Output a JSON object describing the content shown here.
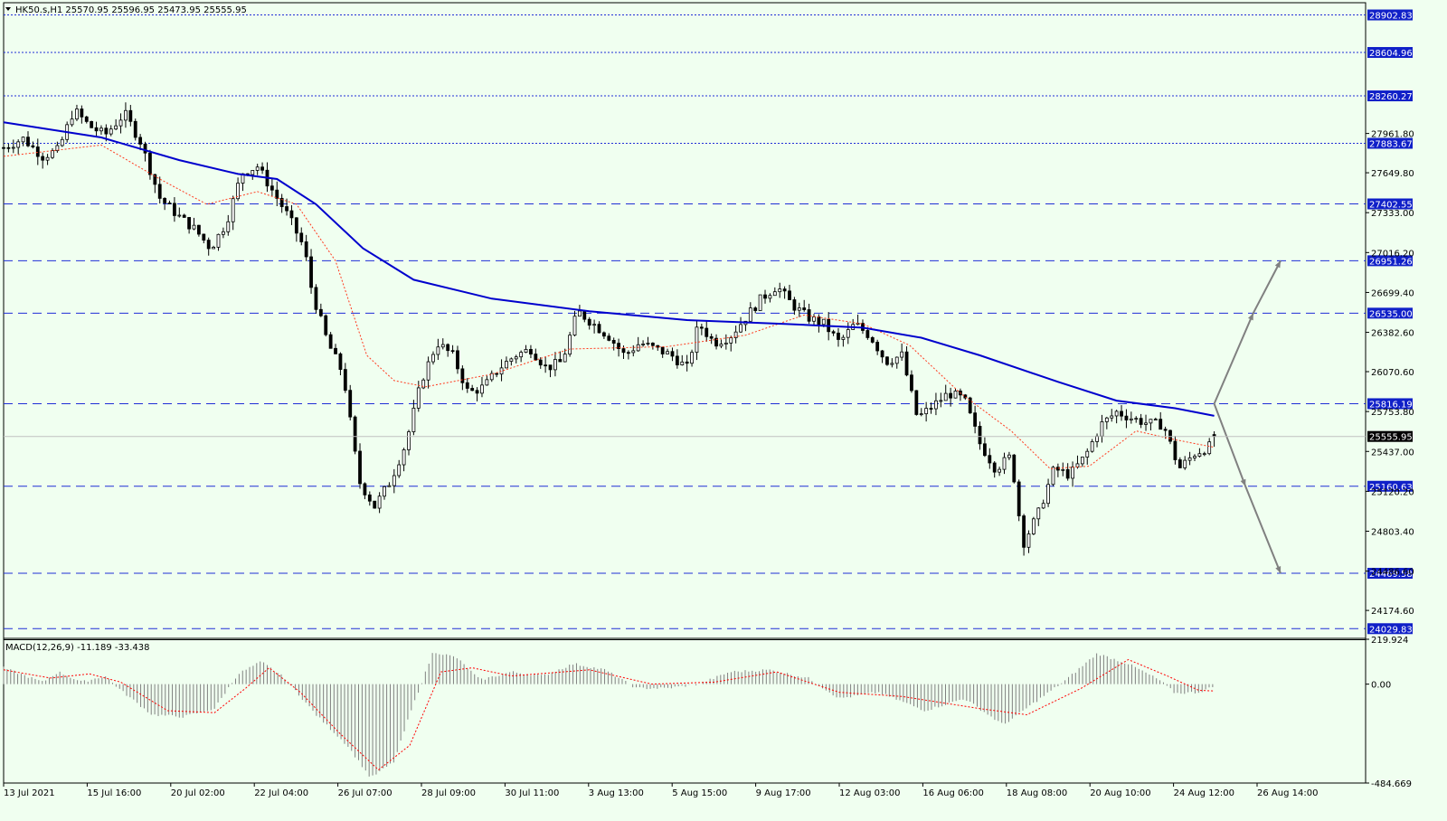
{
  "window": {
    "symbol_info": "HK50.s,H1  25570.95 25596.95 25473.95 25555.95",
    "menu_icon": "triangle-down-icon"
  },
  "colors": {
    "background": "#f0fff0",
    "bull_candle": "#ffffff",
    "bear_candle": "#000000",
    "ma_long": "#0000cd",
    "ma_short": "#ff3b1f",
    "level_line": "#1f2fd6",
    "price_tag_bg": "#1020c8",
    "current_tag_bg": "#000000",
    "macd_hist": "#808080",
    "macd_signal": "#ff0000",
    "arrow": "#808080"
  },
  "chart_data": [
    {
      "type": "candlestick",
      "symbol": "HK50.s",
      "timeframe": "H1",
      "ohlc_last": {
        "open": 25570.95,
        "high": 25596.95,
        "low": 25473.95,
        "close": 25555.95
      },
      "current_price": 25555.95,
      "ylim": [
        23960,
        29000
      ],
      "y_ticks": [
        "27961.80",
        "27649.80",
        "27333.00",
        "27016.20",
        "26699.40",
        "26382.60",
        "26070.60",
        "25753.80",
        "25437.00",
        "25120.20",
        "24803.40",
        "24486.60",
        "24174.60"
      ],
      "x_ticks": [
        "13 Jul 2021",
        "15 Jul 16:00",
        "20 Jul 02:00",
        "22 Jul 04:00",
        "26 Jul 07:00",
        "28 Jul 09:00",
        "30 Jul 11:00",
        "3 Aug 13:00",
        "5 Aug 15:00",
        "9 Aug 17:00",
        "12 Aug 03:00",
        "16 Aug 06:00",
        "18 Aug 08:00",
        "20 Aug 10:00",
        "24 Aug 12:00",
        "26 Aug 14:00"
      ],
      "horizontal_levels": [
        {
          "price": 28902.83,
          "label": "28902.83",
          "style": "dotted"
        },
        {
          "price": 28604.96,
          "label": "28604.96",
          "style": "dotted"
        },
        {
          "price": 28260.27,
          "label": "28260.27",
          "style": "dotted"
        },
        {
          "price": 27883.67,
          "label": "27883.67",
          "style": "dotted"
        },
        {
          "price": 27402.55,
          "label": "27402.55",
          "style": "dashed"
        },
        {
          "price": 26951.26,
          "label": "26951.26",
          "style": "dashed"
        },
        {
          "price": 26535.0,
          "label": "26535.00",
          "style": "dashed"
        },
        {
          "price": 25816.19,
          "label": "25816.19",
          "style": "dashed"
        },
        {
          "price": 25160.63,
          "label": "25160.63",
          "style": "dashed"
        },
        {
          "price": 24469.58,
          "label": "24469.58",
          "style": "dashed"
        },
        {
          "price": 24029.83,
          "label": "24029.83",
          "style": "dashed"
        }
      ],
      "price_path": [
        {
          "x": 0,
          "y": 27850
        },
        {
          "x": 5,
          "y": 27920
        },
        {
          "x": 10,
          "y": 27780
        },
        {
          "x": 14,
          "y": 27830
        },
        {
          "x": 18,
          "y": 28150
        },
        {
          "x": 22,
          "y": 28020
        },
        {
          "x": 26,
          "y": 27950
        },
        {
          "x": 31,
          "y": 28120
        },
        {
          "x": 35,
          "y": 27900
        },
        {
          "x": 40,
          "y": 27450
        },
        {
          "x": 45,
          "y": 27300
        },
        {
          "x": 49,
          "y": 27200
        },
        {
          "x": 53,
          "y": 27050
        },
        {
          "x": 57,
          "y": 27250
        },
        {
          "x": 61,
          "y": 27650
        },
        {
          "x": 65,
          "y": 27700
        },
        {
          "x": 69,
          "y": 27500
        },
        {
          "x": 73,
          "y": 27300
        },
        {
          "x": 77,
          "y": 27050
        },
        {
          "x": 79,
          "y": 26700
        },
        {
          "x": 83,
          "y": 26300
        },
        {
          "x": 87,
          "y": 26050
        },
        {
          "x": 91,
          "y": 25200
        },
        {
          "x": 95,
          "y": 25000
        },
        {
          "x": 99,
          "y": 25200
        },
        {
          "x": 103,
          "y": 25500
        },
        {
          "x": 107,
          "y": 26000
        },
        {
          "x": 111,
          "y": 26300
        },
        {
          "x": 115,
          "y": 26200
        },
        {
          "x": 119,
          "y": 25900
        },
        {
          "x": 123,
          "y": 25950
        },
        {
          "x": 127,
          "y": 26100
        },
        {
          "x": 131,
          "y": 26200
        },
        {
          "x": 135,
          "y": 26250
        },
        {
          "x": 139,
          "y": 26100
        },
        {
          "x": 143,
          "y": 26150
        },
        {
          "x": 147,
          "y": 26550
        },
        {
          "x": 151,
          "y": 26450
        },
        {
          "x": 155,
          "y": 26350
        },
        {
          "x": 159,
          "y": 26200
        },
        {
          "x": 163,
          "y": 26300
        },
        {
          "x": 167,
          "y": 26250
        },
        {
          "x": 171,
          "y": 26200
        },
        {
          "x": 175,
          "y": 26100
        },
        {
          "x": 178,
          "y": 26450
        },
        {
          "x": 182,
          "y": 26300
        },
        {
          "x": 186,
          "y": 26350
        },
        {
          "x": 190,
          "y": 26500
        },
        {
          "x": 194,
          "y": 26650
        },
        {
          "x": 198,
          "y": 26750
        },
        {
          "x": 202,
          "y": 26600
        },
        {
          "x": 206,
          "y": 26500
        },
        {
          "x": 210,
          "y": 26450
        },
        {
          "x": 214,
          "y": 26300
        },
        {
          "x": 218,
          "y": 26450
        },
        {
          "x": 222,
          "y": 26350
        },
        {
          "x": 226,
          "y": 26150
        },
        {
          "x": 230,
          "y": 26200
        },
        {
          "x": 234,
          "y": 25700
        },
        {
          "x": 238,
          "y": 25800
        },
        {
          "x": 242,
          "y": 25900
        },
        {
          "x": 246,
          "y": 25850
        },
        {
          "x": 250,
          "y": 25500
        },
        {
          "x": 254,
          "y": 25300
        },
        {
          "x": 258,
          "y": 25400
        },
        {
          "x": 261,
          "y": 24700
        },
        {
          "x": 265,
          "y": 24950
        },
        {
          "x": 269,
          "y": 25300
        },
        {
          "x": 273,
          "y": 25250
        },
        {
          "x": 277,
          "y": 25400
        },
        {
          "x": 281,
          "y": 25650
        },
        {
          "x": 285,
          "y": 25750
        },
        {
          "x": 289,
          "y": 25700
        },
        {
          "x": 293,
          "y": 25660
        },
        {
          "x": 297,
          "y": 25650
        },
        {
          "x": 301,
          "y": 25300
        },
        {
          "x": 305,
          "y": 25420
        },
        {
          "x": 309,
          "y": 25480
        },
        {
          "x": 310,
          "y": 25555.95
        }
      ],
      "ma_long": [
        {
          "x": 0,
          "y": 28050
        },
        {
          "x": 25,
          "y": 27930
        },
        {
          "x": 45,
          "y": 27750
        },
        {
          "x": 60,
          "y": 27640
        },
        {
          "x": 70,
          "y": 27600
        },
        {
          "x": 80,
          "y": 27400
        },
        {
          "x": 92,
          "y": 27050
        },
        {
          "x": 105,
          "y": 26800
        },
        {
          "x": 125,
          "y": 26650
        },
        {
          "x": 150,
          "y": 26550
        },
        {
          "x": 175,
          "y": 26480
        },
        {
          "x": 200,
          "y": 26450
        },
        {
          "x": 220,
          "y": 26420
        },
        {
          "x": 235,
          "y": 26340
        },
        {
          "x": 250,
          "y": 26200
        },
        {
          "x": 270,
          "y": 25990
        },
        {
          "x": 285,
          "y": 25840
        },
        {
          "x": 300,
          "y": 25780
        },
        {
          "x": 310,
          "y": 25720
        }
      ],
      "ma_short": [
        {
          "x": 0,
          "y": 27780
        },
        {
          "x": 25,
          "y": 27870
        },
        {
          "x": 40,
          "y": 27600
        },
        {
          "x": 52,
          "y": 27400
        },
        {
          "x": 65,
          "y": 27500
        },
        {
          "x": 75,
          "y": 27400
        },
        {
          "x": 85,
          "y": 26950
        },
        {
          "x": 93,
          "y": 26200
        },
        {
          "x": 100,
          "y": 26000
        },
        {
          "x": 108,
          "y": 25950
        },
        {
          "x": 125,
          "y": 26050
        },
        {
          "x": 145,
          "y": 26250
        },
        {
          "x": 170,
          "y": 26270
        },
        {
          "x": 190,
          "y": 26360
        },
        {
          "x": 205,
          "y": 26520
        },
        {
          "x": 220,
          "y": 26450
        },
        {
          "x": 232,
          "y": 26280
        },
        {
          "x": 245,
          "y": 25900
        },
        {
          "x": 258,
          "y": 25600
        },
        {
          "x": 268,
          "y": 25300
        },
        {
          "x": 278,
          "y": 25320
        },
        {
          "x": 290,
          "y": 25600
        },
        {
          "x": 300,
          "y": 25530
        },
        {
          "x": 310,
          "y": 25470
        }
      ],
      "forecast_arrows": [
        {
          "from": {
            "x": 310,
            "y": 25816.19
          },
          "via": {
            "x": 320,
            "y": 26535.0
          },
          "to": {
            "x": 327,
            "y": 26951.26
          }
        },
        {
          "from": {
            "x": 310,
            "y": 25816.19
          },
          "via": {
            "x": 318,
            "y": 25160.63
          },
          "to": {
            "x": 327,
            "y": 24469.58
          }
        }
      ]
    },
    {
      "type": "bar",
      "indicator": "macd",
      "title": "MACD(12,26,9) -11.189 -33.438",
      "ylim": [
        -484.669,
        219.924
      ],
      "y_ticks": [
        "219.924",
        "0.00",
        "-484.669"
      ],
      "histogram": [
        {
          "x": 0,
          "y": 80
        },
        {
          "x": 10,
          "y": 10
        },
        {
          "x": 14,
          "y": 60
        },
        {
          "x": 20,
          "y": 10
        },
        {
          "x": 26,
          "y": 40
        },
        {
          "x": 30,
          "y": -30
        },
        {
          "x": 38,
          "y": -150
        },
        {
          "x": 46,
          "y": -160
        },
        {
          "x": 54,
          "y": -120
        },
        {
          "x": 60,
          "y": 50
        },
        {
          "x": 66,
          "y": 110
        },
        {
          "x": 72,
          "y": 30
        },
        {
          "x": 80,
          "y": -150
        },
        {
          "x": 88,
          "y": -300
        },
        {
          "x": 94,
          "y": -460
        },
        {
          "x": 100,
          "y": -380
        },
        {
          "x": 104,
          "y": -150
        },
        {
          "x": 110,
          "y": 160
        },
        {
          "x": 116,
          "y": 130
        },
        {
          "x": 122,
          "y": 20
        },
        {
          "x": 130,
          "y": 60
        },
        {
          "x": 138,
          "y": 40
        },
        {
          "x": 146,
          "y": 100
        },
        {
          "x": 154,
          "y": 70
        },
        {
          "x": 162,
          "y": -20
        },
        {
          "x": 170,
          "y": -20
        },
        {
          "x": 178,
          "y": 0
        },
        {
          "x": 186,
          "y": 60
        },
        {
          "x": 196,
          "y": 70
        },
        {
          "x": 206,
          "y": 30
        },
        {
          "x": 214,
          "y": -70
        },
        {
          "x": 224,
          "y": -40
        },
        {
          "x": 236,
          "y": -130
        },
        {
          "x": 246,
          "y": -70
        },
        {
          "x": 256,
          "y": -200
        },
        {
          "x": 264,
          "y": -90
        },
        {
          "x": 272,
          "y": 20
        },
        {
          "x": 280,
          "y": 150
        },
        {
          "x": 288,
          "y": 100
        },
        {
          "x": 296,
          "y": 20
        },
        {
          "x": 300,
          "y": -45
        },
        {
          "x": 306,
          "y": -40
        },
        {
          "x": 310,
          "y": -11.189
        }
      ],
      "signal": [
        {
          "x": 0,
          "y": 70
        },
        {
          "x": 12,
          "y": 30
        },
        {
          "x": 22,
          "y": 50
        },
        {
          "x": 30,
          "y": 10
        },
        {
          "x": 42,
          "y": -130
        },
        {
          "x": 54,
          "y": -140
        },
        {
          "x": 62,
          "y": -20
        },
        {
          "x": 68,
          "y": 80
        },
        {
          "x": 76,
          "y": -40
        },
        {
          "x": 86,
          "y": -240
        },
        {
          "x": 96,
          "y": -420
        },
        {
          "x": 104,
          "y": -300
        },
        {
          "x": 112,
          "y": 60
        },
        {
          "x": 120,
          "y": 80
        },
        {
          "x": 130,
          "y": 40
        },
        {
          "x": 150,
          "y": 70
        },
        {
          "x": 166,
          "y": 0
        },
        {
          "x": 182,
          "y": 10
        },
        {
          "x": 198,
          "y": 60
        },
        {
          "x": 214,
          "y": -40
        },
        {
          "x": 230,
          "y": -60
        },
        {
          "x": 250,
          "y": -120
        },
        {
          "x": 262,
          "y": -150
        },
        {
          "x": 276,
          "y": -20
        },
        {
          "x": 288,
          "y": 120
        },
        {
          "x": 298,
          "y": 40
        },
        {
          "x": 306,
          "y": -30
        },
        {
          "x": 310,
          "y": -33.438
        }
      ]
    }
  ]
}
